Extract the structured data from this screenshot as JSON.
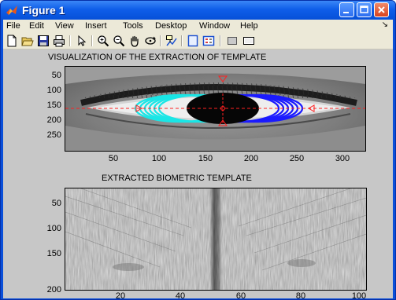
{
  "window": {
    "title": "Figure 1"
  },
  "menubar": {
    "items": [
      "File",
      "Edit",
      "View",
      "Insert",
      "Tools",
      "Desktop",
      "Window",
      "Help"
    ],
    "overflow_arrow": "↘"
  },
  "toolbar": {
    "icons": [
      "new-file-icon",
      "open-folder-icon",
      "save-icon",
      "print-icon",
      "pointer-icon",
      "zoom-in-icon",
      "zoom-out-icon",
      "pan-hand-icon",
      "rotate-3d-icon",
      "data-cursor-icon",
      "colorbar-icon",
      "legend-icon",
      "hide-plot-tools-icon",
      "show-plot-tools-icon"
    ]
  },
  "plot1": {
    "title": "VISUALIZATION OF THE EXTRACTION OF TEMPLATE",
    "yticks": [
      "50",
      "100",
      "150",
      "200",
      "250"
    ],
    "xticks": [
      "50",
      "100",
      "150",
      "200",
      "250",
      "300"
    ]
  },
  "plot2": {
    "title": "EXTRACTED BIOMETRIC TEMPLATE",
    "yticks": [
      "50",
      "100",
      "150",
      "200"
    ],
    "xticks": [
      "20",
      "40",
      "60",
      "80",
      "100"
    ]
  },
  "colors": {
    "iris_cyan": "#19e6e6",
    "iris_blue": "#1a1aff",
    "marker_red": "#ff2020"
  }
}
